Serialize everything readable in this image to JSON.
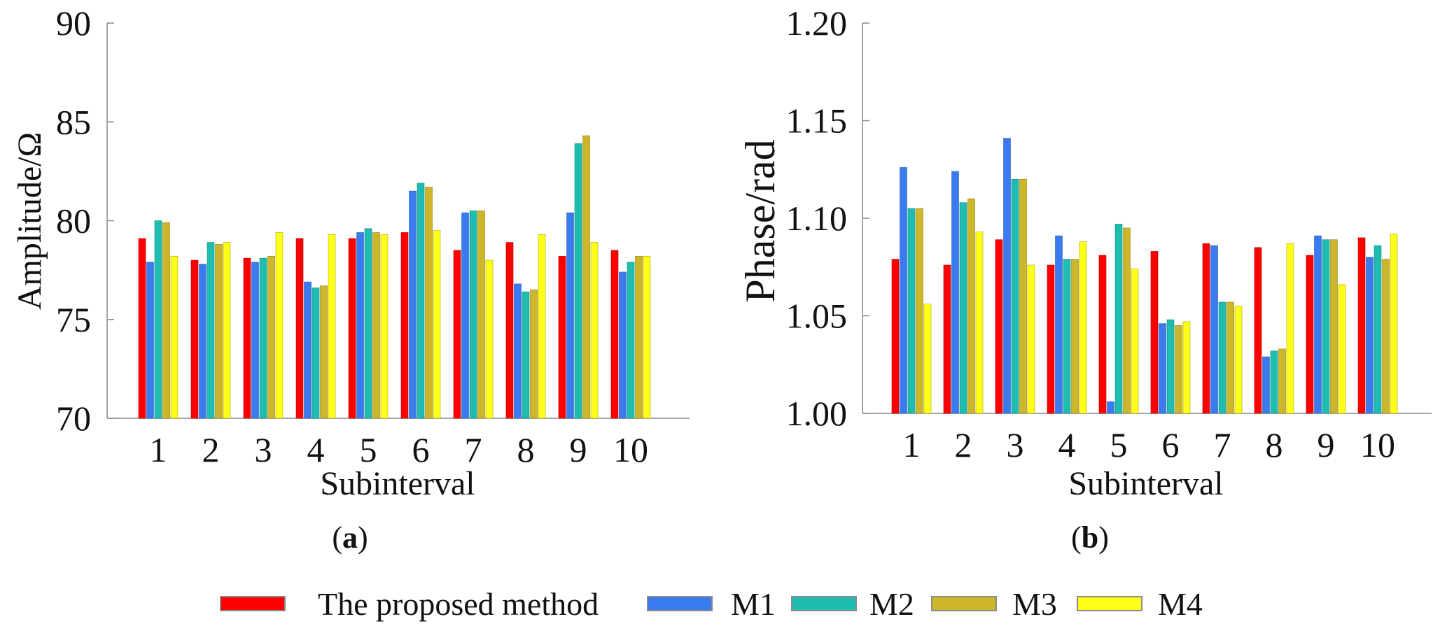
{
  "chart_data": [
    {
      "type": "bar",
      "caption": "(a)",
      "categories": [
        "1",
        "2",
        "3",
        "4",
        "5",
        "6",
        "7",
        "8",
        "9",
        "10"
      ],
      "xlabel": "Subinterval",
      "ylabel": "Amplitude/Ω",
      "ylim": [
        70,
        90
      ],
      "yticks": [
        "70",
        "75",
        "80",
        "85",
        "90"
      ],
      "series": [
        {
          "name": "The proposed method",
          "values": [
            79.1,
            78.0,
            78.1,
            79.1,
            79.1,
            79.4,
            78.5,
            78.9,
            78.2,
            78.5
          ]
        },
        {
          "name": "M1",
          "values": [
            77.9,
            77.8,
            77.9,
            76.9,
            79.4,
            81.5,
            80.4,
            76.8,
            80.4,
            77.4
          ]
        },
        {
          "name": "M2",
          "values": [
            80.0,
            78.9,
            78.1,
            76.6,
            79.6,
            81.9,
            80.5,
            76.4,
            83.9,
            77.9
          ]
        },
        {
          "name": "M3",
          "values": [
            79.9,
            78.8,
            78.2,
            76.7,
            79.4,
            81.7,
            80.5,
            76.5,
            84.3,
            78.2
          ]
        },
        {
          "name": "M4",
          "values": [
            78.2,
            78.9,
            79.4,
            79.3,
            79.3,
            79.5,
            78.0,
            79.3,
            78.9,
            78.2
          ]
        }
      ]
    },
    {
      "type": "bar",
      "caption": "(b)",
      "categories": [
        "1",
        "2",
        "3",
        "4",
        "5",
        "6",
        "7",
        "8",
        "9",
        "10"
      ],
      "xlabel": "Subinterval",
      "ylabel": "Phase/rad",
      "ylim": [
        1.0,
        1.2
      ],
      "yticks": [
        "1.00",
        "1.05",
        "1.10",
        "1.15",
        "1.20"
      ],
      "series": [
        {
          "name": "The proposed method",
          "values": [
            1.079,
            1.076,
            1.089,
            1.076,
            1.081,
            1.083,
            1.087,
            1.085,
            1.081,
            1.09
          ]
        },
        {
          "name": "M1",
          "values": [
            1.126,
            1.124,
            1.141,
            1.091,
            1.006,
            1.046,
            1.086,
            1.029,
            1.091,
            1.08
          ]
        },
        {
          "name": "M2",
          "values": [
            1.105,
            1.108,
            1.12,
            1.079,
            1.097,
            1.048,
            1.057,
            1.032,
            1.089,
            1.086
          ]
        },
        {
          "name": "M3",
          "values": [
            1.105,
            1.11,
            1.12,
            1.079,
            1.095,
            1.045,
            1.057,
            1.033,
            1.089,
            1.079
          ]
        },
        {
          "name": "M4",
          "values": [
            1.056,
            1.093,
            1.076,
            1.088,
            1.074,
            1.047,
            1.055,
            1.087,
            1.066,
            1.092
          ]
        }
      ]
    }
  ],
  "legend": {
    "items": [
      {
        "label": "The proposed method",
        "color": "#ff0000"
      },
      {
        "label": "M1",
        "color": "#3b7bf0"
      },
      {
        "label": "M2",
        "color": "#1fbcb0"
      },
      {
        "label": "M3",
        "color": "#cdb62a"
      },
      {
        "label": "M4",
        "color": "#ffff1a"
      }
    ]
  }
}
